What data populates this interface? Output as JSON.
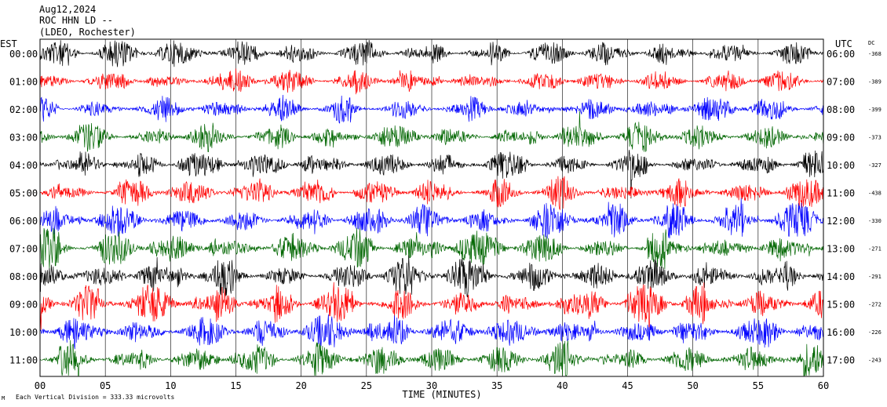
{
  "header": {
    "date": "Aug12,2024",
    "station": "ROC HHN LD --",
    "network": "(LDEO, Rochester)"
  },
  "labels": {
    "left_tz": "EST",
    "right_tz": "UTC",
    "dc": "DC",
    "xlabel": "TIME (MINUTES)",
    "footer": "Each Vertical Division =  333.33 microvolts",
    "corner_mark": "M"
  },
  "chart_data": {
    "type": "line",
    "title": "Aug12,2024",
    "xlabel": "TIME (MINUTES)",
    "ylabel": "",
    "xlim": [
      0,
      60
    ],
    "x_ticks": [
      "00",
      "05",
      "10",
      "15",
      "20",
      "25",
      "30",
      "35",
      "40",
      "45",
      "50",
      "55",
      "60"
    ],
    "grid": true,
    "series_colors": [
      "#000000",
      "#ff0000",
      "#0000ff",
      "#006600"
    ],
    "rows": [
      {
        "est": "00:00",
        "utc": "06:00",
        "dc": "-368",
        "amp": 0.35
      },
      {
        "est": "01:00",
        "utc": "07:00",
        "dc": "-389",
        "amp": 0.38
      },
      {
        "est": "02:00",
        "utc": "08:00",
        "dc": "-399",
        "amp": 0.4
      },
      {
        "est": "03:00",
        "utc": "09:00",
        "dc": "-373",
        "amp": 0.42
      },
      {
        "est": "04:00",
        "utc": "10:00",
        "dc": "-327",
        "amp": 0.48
      },
      {
        "est": "05:00",
        "utc": "11:00",
        "dc": "-438",
        "amp": 0.55
      },
      {
        "est": "06:00",
        "utc": "12:00",
        "dc": "-330",
        "amp": 0.75
      },
      {
        "est": "07:00",
        "utc": "13:00",
        "dc": "-271",
        "amp": 0.95
      },
      {
        "est": "08:00",
        "utc": "14:00",
        "dc": "-291",
        "amp": 0.95
      },
      {
        "est": "09:00",
        "utc": "15:00",
        "dc": "-272",
        "amp": 0.9
      },
      {
        "est": "10:00",
        "utc": "16:00",
        "dc": "-226",
        "amp": 0.9
      },
      {
        "est": "11:00",
        "utc": "17:00",
        "dc": "-243",
        "amp": 0.85
      }
    ]
  }
}
